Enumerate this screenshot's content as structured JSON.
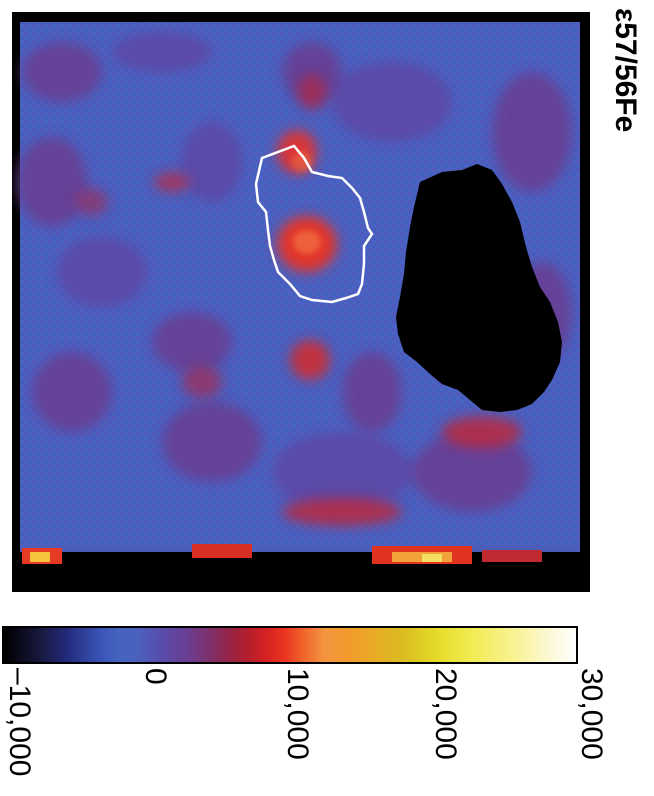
{
  "figure": {
    "title": "ε57/56Fe",
    "colorbar": {
      "ticks": [
        "–10,000",
        "0",
        "10,000",
        "20,000",
        "30,000"
      ],
      "min": -10000,
      "max": 30000,
      "colormap": [
        "#000000",
        "#2a3a90",
        "#4a62bf",
        "#6a3f92",
        "#d62321",
        "#f49540",
        "#e6dc2a",
        "#ffffff"
      ]
    },
    "map_colors": {
      "background": "#4a62c2",
      "masked_region": "#000000",
      "outline": "#ffffff",
      "hotspot": "#e8312a"
    }
  }
}
